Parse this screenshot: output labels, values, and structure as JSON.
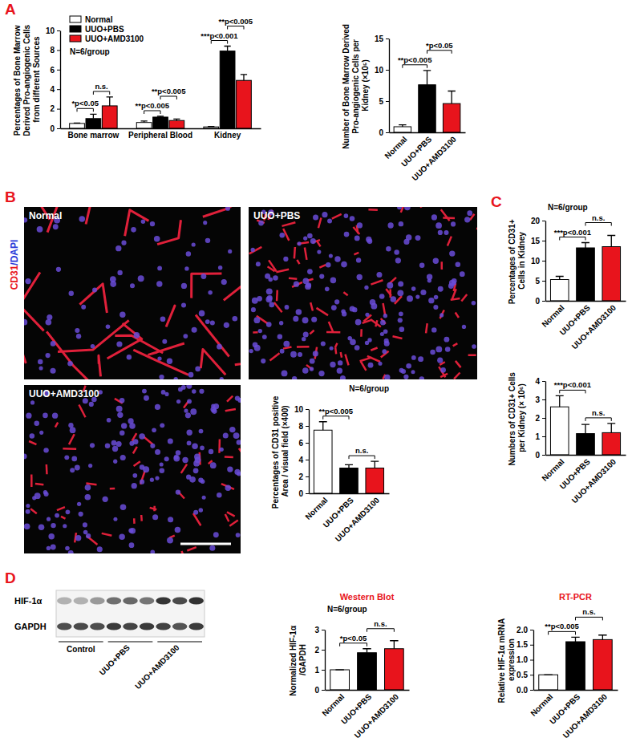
{
  "panel_labels": [
    "A",
    "B",
    "C",
    "D"
  ],
  "micrographs": {
    "stain": [
      "CD31",
      "/DAPI"
    ],
    "labels": [
      "Normal",
      "UUO+PBS",
      "UUO+AMD3100"
    ]
  },
  "blot": {
    "rows": [
      "HIF-1α",
      "GAPDH"
    ],
    "groups": [
      "Control",
      "UUO+PBS",
      "UUO+AMD3100"
    ]
  },
  "chart_data": [
    {
      "type": "bar",
      "ylabel": "Percentages of Bone Marrow Derived Pro-angiogenic Cells from different Sources",
      "categories": [
        "Bone marrow",
        "Peripheral Blood",
        "Kidney"
      ],
      "series": [
        {
          "name": "Normal",
          "color": "#ffffff",
          "values": [
            0.5,
            0.6,
            0.15
          ],
          "errors": [
            0.05,
            0.15,
            0.05
          ]
        },
        {
          "name": "UUO+PBS",
          "color": "#000000",
          "values": [
            1.0,
            1.15,
            7.9
          ],
          "errors": [
            0.45,
            0.08,
            0.5
          ]
        },
        {
          "name": "UUO+AMD3100",
          "color": "#e8141c",
          "values": [
            2.3,
            0.8,
            4.9
          ],
          "errors": [
            0.9,
            0.15,
            0.6
          ]
        }
      ],
      "ylim": [
        0,
        10
      ],
      "yticks": [
        0,
        2,
        4,
        6,
        8,
        10
      ],
      "legend": "upper left",
      "note": "N=6/group",
      "annotations": [
        "*p<0.05",
        "n.s.",
        "**p<0.005",
        "**p<0.005",
        "***p<0.001",
        "**p<0.005"
      ]
    },
    {
      "type": "bar",
      "ylabel": "Number of Bone Marrow Derived Pro-angiogenic Cells per Kidney (×10⁵)",
      "categories": [
        "Normal",
        "UUO+PBS",
        "UUO+AMD3100"
      ],
      "values": [
        0.9,
        7.6,
        4.6
      ],
      "errors": [
        0.3,
        2.3,
        2.0
      ],
      "colors": [
        "#ffffff",
        "#000000",
        "#e8141c"
      ],
      "ylim": [
        0,
        15
      ],
      "yticks": [
        0,
        5,
        10,
        15
      ],
      "annotations": [
        "**p<0.005",
        "*p<0.05"
      ]
    },
    {
      "type": "bar",
      "ylabel": "Percentages of CD31 positive Area / visual field (×400)",
      "categories": [
        "Normal",
        "UUO+PBS",
        "UUO+AMD3100"
      ],
      "values": [
        7.5,
        3.0,
        3.0
      ],
      "errors": [
        1.0,
        0.4,
        0.8
      ],
      "colors": [
        "#ffffff",
        "#000000",
        "#e8141c"
      ],
      "ylim": [
        0,
        10
      ],
      "yticks": [
        0,
        2,
        4,
        6,
        8,
        10
      ],
      "note": "N=6/group",
      "annotations": [
        "**p<0.005",
        "n.s."
      ]
    },
    {
      "type": "bar",
      "ylabel": "Percentages of CD31+ Cells in Kidney",
      "categories": [
        "Normal",
        "UUO+PBS",
        "UUO+AMD3100"
      ],
      "values": [
        5.3,
        13.2,
        13.5
      ],
      "errors": [
        0.8,
        1.3,
        2.8
      ],
      "colors": [
        "#ffffff",
        "#000000",
        "#e8141c"
      ],
      "ylim": [
        0,
        20
      ],
      "yticks": [
        0,
        5,
        10,
        15,
        20
      ],
      "note": "N=6/group",
      "annotations": [
        "***p<0.001",
        "n.s."
      ]
    },
    {
      "type": "bar",
      "ylabel": "Numbers of CD31+ Cells per Kidney (× 10⁶)",
      "categories": [
        "Normal",
        "UUO+PBS",
        "UUO+AMD3100"
      ],
      "values": [
        2.6,
        1.15,
        1.2
      ],
      "errors": [
        0.6,
        0.5,
        0.5
      ],
      "colors": [
        "#ffffff",
        "#000000",
        "#e8141c"
      ],
      "ylim": [
        0,
        4
      ],
      "yticks": [
        0,
        1,
        2,
        3,
        4
      ],
      "annotations": [
        "***p<0.001",
        "n.s."
      ]
    },
    {
      "type": "bar",
      "title": "Western Blot",
      "ylabel": "Normalized HIF-1α /GAPDH",
      "categories": [
        "Normal",
        "UUO+PBS",
        "UUO+AMD3100"
      ],
      "values": [
        1.0,
        1.85,
        2.05
      ],
      "errors": [
        0,
        0.2,
        0.4
      ],
      "colors": [
        "#ffffff",
        "#000000",
        "#e8141c"
      ],
      "ylim": [
        0,
        3
      ],
      "yticks": [
        0,
        1,
        2,
        3
      ],
      "note": "N=6/group",
      "annotations": [
        "*p<0.05",
        "n.s."
      ]
    },
    {
      "type": "bar",
      "title": "RT-PCR",
      "ylabel": "Relative HIF-1α mRNA expression",
      "categories": [
        "Normal",
        "UUO+PBS",
        "UUO+AMD3100"
      ],
      "values": [
        0.5,
        1.6,
        1.67
      ],
      "errors": [
        0,
        0.15,
        0.15
      ],
      "colors": [
        "#ffffff",
        "#000000",
        "#e8141c"
      ],
      "ylim": [
        0,
        2
      ],
      "yticks": [
        {
          "value": 0,
          "label": "0.0"
        },
        0.5,
        {
          "value": 1,
          "label": "1.0"
        },
        1.5,
        {
          "value": 2,
          "label": "2.0"
        }
      ],
      "annotations": [
        "**p<0.005",
        "n.s."
      ]
    }
  ]
}
